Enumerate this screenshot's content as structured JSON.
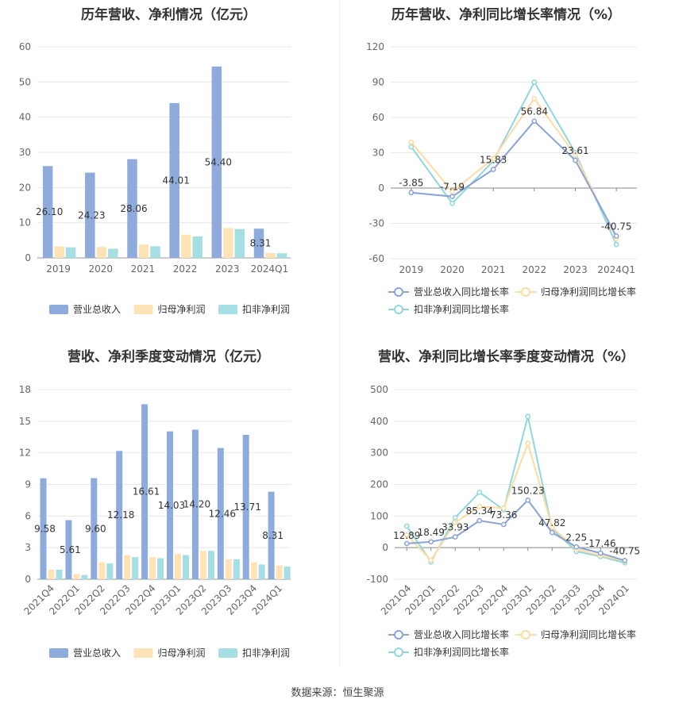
{
  "colors": {
    "revenue": "#8eabdb",
    "net_profit": "#fde3b6",
    "deducted_profit": "#a5dfe3",
    "revenue_line": "#8aa3d6",
    "net_line": "#fddba3",
    "deducted_line": "#8fd7dc"
  },
  "footer": "数据来源：恒生聚源",
  "chart_data": [
    {
      "type": "bar",
      "title": "历年营收、净利情况（亿元）",
      "categories": [
        "2019",
        "2020",
        "2021",
        "2022",
        "2023",
        "2024Q1"
      ],
      "ylim": [
        0,
        60
      ],
      "yticks": [
        0,
        10,
        20,
        30,
        40,
        50,
        60
      ],
      "series": [
        {
          "name": "营业总收入",
          "values": [
            26.1,
            24.23,
            28.06,
            44.01,
            54.4,
            8.31
          ]
        },
        {
          "name": "归母净利润",
          "values": [
            3.3,
            3.1,
            3.8,
            6.6,
            8.5,
            1.4
          ]
        },
        {
          "name": "扣非净利润",
          "values": [
            3.0,
            2.6,
            3.3,
            6.1,
            8.2,
            1.3
          ]
        }
      ],
      "data_labels": [
        "26.10",
        "24.23",
        "28.06",
        "44.01",
        "54.40",
        "8.31"
      ],
      "legend": "bottom"
    },
    {
      "type": "line",
      "title": "历年营收、净利同比增长率情况（%）",
      "categories": [
        "2019",
        "2020",
        "2021",
        "2022",
        "2023",
        "2024Q1"
      ],
      "ylim": [
        -60,
        120
      ],
      "yticks": [
        -60,
        -30,
        0,
        30,
        60,
        90,
        120
      ],
      "series": [
        {
          "name": "营业总收入同比增长率",
          "values": [
            -3.85,
            -7.19,
            15.83,
            56.84,
            23.61,
            -40.75
          ]
        },
        {
          "name": "归母净利润同比增长率",
          "values": [
            39,
            -3,
            25,
            76,
            28,
            -43
          ]
        },
        {
          "name": "扣非净利润同比增长率",
          "values": [
            35,
            -13,
            23,
            90,
            30,
            -48
          ]
        }
      ],
      "data_labels": [
        "-3.85",
        "-7.19",
        "15.83",
        "56.84",
        "23.61",
        "-40.75"
      ],
      "legend": "bottom"
    },
    {
      "type": "bar",
      "title": "营收、净利季度变动情况（亿元）",
      "categories": [
        "2021Q4",
        "2022Q1",
        "2022Q2",
        "2022Q3",
        "2022Q4",
        "2023Q1",
        "2023Q2",
        "2023Q3",
        "2023Q4",
        "2024Q1"
      ],
      "ylim": [
        0,
        18
      ],
      "yticks": [
        0,
        3,
        6,
        9,
        12,
        15,
        18
      ],
      "series": [
        {
          "name": "营业总收入",
          "values": [
            9.58,
            5.61,
            9.6,
            12.18,
            16.61,
            14.03,
            14.2,
            12.46,
            13.71,
            8.31
          ]
        },
        {
          "name": "归母净利润",
          "values": [
            0.9,
            0.5,
            1.6,
            2.3,
            2.1,
            2.4,
            2.7,
            1.9,
            1.6,
            1.3
          ]
        },
        {
          "name": "扣非净利润",
          "values": [
            0.9,
            0.4,
            1.5,
            2.1,
            2.0,
            2.3,
            2.7,
            1.9,
            1.4,
            1.2
          ]
        }
      ],
      "data_labels": [
        "9.58",
        "5.61",
        "9.60",
        "12.18",
        "16.61",
        "14.03",
        "14.20",
        "12.46",
        "13.71",
        "8.31"
      ],
      "legend": "bottom"
    },
    {
      "type": "line",
      "title": "营收、净利同比增长率季度变动情况（%）",
      "categories": [
        "2021Q4",
        "2022Q1",
        "2022Q2",
        "2022Q3",
        "2022Q4",
        "2023Q1",
        "2023Q2",
        "2023Q3",
        "2023Q4",
        "2024Q1"
      ],
      "ylim": [
        -100,
        500
      ],
      "yticks": [
        -100,
        0,
        100,
        200,
        300,
        400,
        500
      ],
      "series": [
        {
          "name": "营业总收入同比增长率",
          "values": [
            12.89,
            18.49,
            33.93,
            85.34,
            73.36,
            150.23,
            47.82,
            2.25,
            -17.46,
            -40.75
          ]
        },
        {
          "name": "归母净利润同比增长率",
          "values": [
            40,
            -40,
            80,
            130,
            125,
            330,
            65,
            -5,
            -25,
            -43
          ]
        },
        {
          "name": "扣非净利润同比增长率",
          "values": [
            68,
            -45,
            95,
            175,
            120,
            415,
            60,
            -12,
            -28,
            -48
          ]
        }
      ],
      "data_labels": [
        "12.89",
        "18.49",
        "33.93",
        "85.34",
        "73.36",
        "150.23",
        "47.82",
        "2.25",
        "-17.46",
        "-40.75"
      ],
      "legend": "bottom"
    }
  ]
}
